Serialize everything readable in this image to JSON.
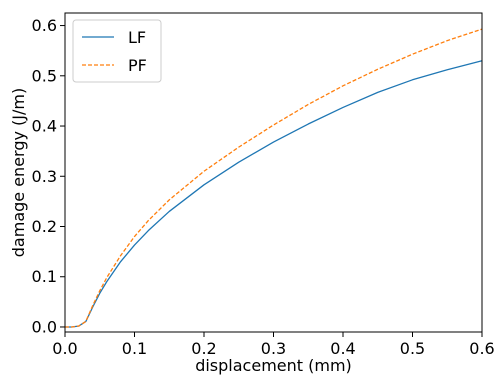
{
  "chart_data": {
    "type": "line",
    "title": "",
    "xlabel": "displacement (mm)",
    "ylabel": "damage energy (J/m)",
    "xlim": [
      0.0,
      0.6
    ],
    "ylim": [
      -0.01,
      0.625
    ],
    "x_ticks": [
      "0.0",
      "0.1",
      "0.2",
      "0.3",
      "0.4",
      "0.5",
      "0.6"
    ],
    "y_ticks": [
      "0.0",
      "0.1",
      "0.2",
      "0.3",
      "0.4",
      "0.5",
      "0.6"
    ],
    "grid": false,
    "legend_position": "top-left",
    "series": [
      {
        "name": "LF",
        "color": "#1f77b4",
        "line_style": "solid",
        "x": [
          0.0,
          0.01,
          0.02,
          0.03,
          0.04,
          0.05,
          0.06,
          0.08,
          0.1,
          0.12,
          0.15,
          0.2,
          0.25,
          0.3,
          0.35,
          0.4,
          0.45,
          0.5,
          0.55,
          0.6
        ],
        "y": [
          0.0,
          0.0,
          0.002,
          0.011,
          0.04,
          0.067,
          0.09,
          0.13,
          0.163,
          0.192,
          0.23,
          0.283,
          0.328,
          0.368,
          0.404,
          0.437,
          0.467,
          0.492,
          0.512,
          0.53
        ]
      },
      {
        "name": "PF",
        "color": "#ff7f0e",
        "line_style": "dashed",
        "x": [
          0.0,
          0.01,
          0.02,
          0.03,
          0.04,
          0.05,
          0.06,
          0.08,
          0.1,
          0.12,
          0.15,
          0.2,
          0.25,
          0.3,
          0.35,
          0.4,
          0.45,
          0.5,
          0.55,
          0.6
        ],
        "y": [
          0.0,
          0.0,
          0.002,
          0.011,
          0.043,
          0.072,
          0.098,
          0.142,
          0.18,
          0.212,
          0.253,
          0.31,
          0.358,
          0.402,
          0.443,
          0.48,
          0.513,
          0.543,
          0.57,
          0.593
        ]
      }
    ]
  }
}
